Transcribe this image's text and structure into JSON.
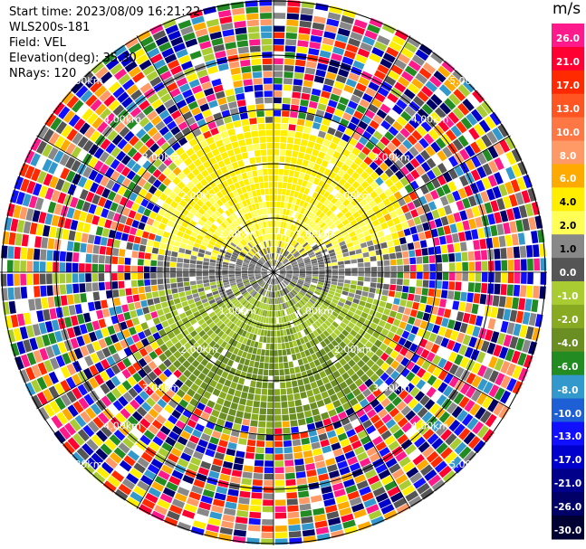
{
  "info": {
    "start_time": "Start time: 2023/08/09 16:21:22",
    "instrument": "WLS200s-181",
    "field": "Field: VEL",
    "elevation": "Elevation(deg): 35.30",
    "nrays": "NRays: 120"
  },
  "ring_labels": [
    "1.00km",
    "2.00km",
    "3.00km",
    "4.00km",
    "5.00km"
  ],
  "colorbar": {
    "unit": "m/s",
    "labels": [
      "26.0",
      "21.0",
      "17.0",
      "13.0",
      "10.0",
      "8.0",
      "6.0",
      "4.0",
      "2.0",
      "1.0",
      "0.0",
      "-1.0",
      "-2.0",
      "-4.0",
      "-6.0",
      "-8.0",
      "-10.0",
      "-13.0",
      "-17.0",
      "-21.0",
      "-26.0",
      "-30.0"
    ],
    "colors": [
      "#ff1a8c",
      "#ff0033",
      "#ff2a00",
      "#ff5522",
      "#ff7744",
      "#ff9966",
      "#ffaa00",
      "#ffee00",
      "#ffff55",
      "#888888",
      "#555555",
      "#aacc33",
      "#88aa22",
      "#6b8e23",
      "#228b22",
      "#3399cc",
      "#1e5fd6",
      "#1010ff",
      "#0000cc",
      "#00008b",
      "#000066",
      "#000033"
    ]
  }
}
